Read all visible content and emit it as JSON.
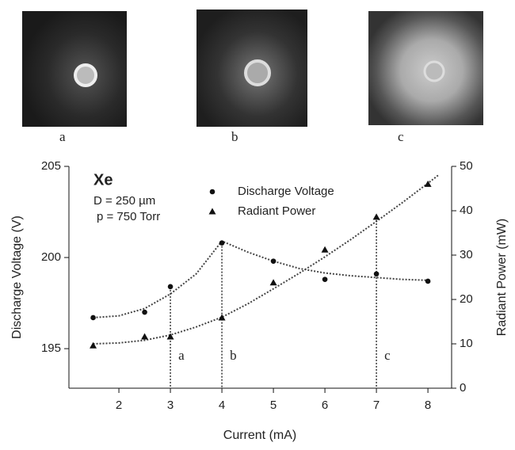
{
  "images": [
    "a",
    "b",
    "c"
  ],
  "chart_data": {
    "type": "scatter",
    "color": "#111",
    "x": [
      1.5,
      2.5,
      3,
      4,
      5,
      6,
      7,
      8
    ],
    "series": [
      {
        "name": "Discharge Voltage",
        "marker": "circle",
        "values": [
          196.7,
          197.0,
          198.4,
          200.8,
          199.8,
          198.8,
          199.1,
          198.7
        ]
      },
      {
        "name": "Radiant Power",
        "marker": "triangle",
        "axis": "y2",
        "values": [
          9.6,
          11.6,
          11.6,
          15.9,
          23.8,
          31.2,
          38.6,
          46
        ]
      }
    ],
    "fits": [
      {
        "x": [
          1.5,
          2,
          2.5,
          3,
          3.5,
          4,
          4.5,
          5,
          5.5,
          6,
          6.5,
          7,
          7.5,
          8
        ],
        "values": [
          196.7,
          196.8,
          197.2,
          198.0,
          199.1,
          200.9,
          200.3,
          199.8,
          199.4,
          199.15,
          199.0,
          198.9,
          198.8,
          198.75
        ]
      },
      {
        "x": [
          1.5,
          2,
          2.5,
          3,
          3.5,
          4,
          4.5,
          5,
          5.5,
          6,
          6.5,
          7,
          7.5,
          8,
          8.2
        ],
        "values": [
          10,
          10.2,
          10.8,
          12,
          13.8,
          16,
          19,
          22.4,
          25.9,
          29.6,
          33.5,
          37.6,
          41.8,
          46.2,
          48
        ],
        "axis": "y2"
      }
    ],
    "markers": [
      {
        "x": 3,
        "label": "a"
      },
      {
        "x": 4,
        "label": "b"
      },
      {
        "x": 7,
        "label": "c"
      }
    ],
    "xlim": [
      1.03,
      8.46
    ],
    "xticks": [
      2,
      3,
      4,
      5,
      6,
      7,
      8
    ],
    "ylim": [
      192.83,
      205
    ],
    "yticks": [
      195,
      200,
      205
    ],
    "y2lim": [
      0,
      50
    ],
    "y2ticks": [
      0,
      10,
      20,
      30,
      40,
      50
    ],
    "xlabel": "Current (mA)",
    "ylabel": "Discharge Voltage (V)",
    "y2label": "Radiant Power (mW)",
    "annotations": [
      "Xe",
      "D = 250 µm",
      "p = 750 Torr"
    ]
  }
}
